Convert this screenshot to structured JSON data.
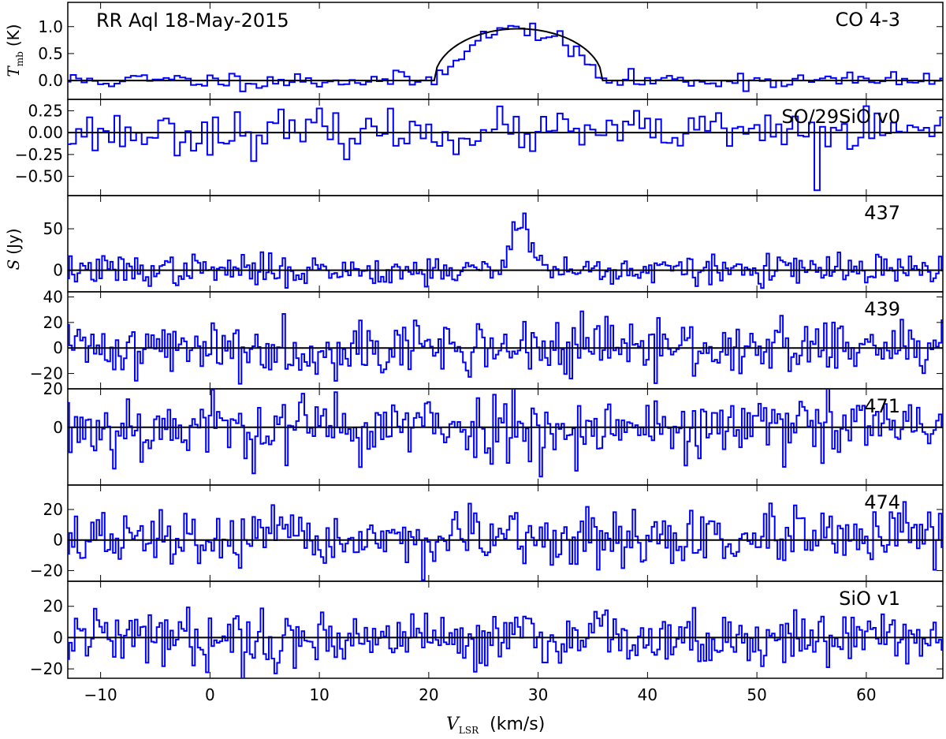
{
  "chart_data": {
    "type": "line",
    "title": "RR Aql  18-May-2015",
    "xlabel": {
      "symbol": "V",
      "subscript": "LSR",
      "unit": "(km/s)"
    },
    "xlim": [
      -13,
      67
    ],
    "xticks": [
      -10,
      0,
      10,
      20,
      30,
      40,
      50,
      60
    ],
    "xtick_labels": [
      "−10",
      "0",
      "10",
      "20",
      "30",
      "40",
      "50",
      "60"
    ],
    "ylabels": {
      "tmb": {
        "symbol": "T",
        "subscript": "mb",
        "unit": "(K)"
      },
      "s": {
        "symbol": "S",
        "unit": "(Jy)"
      }
    },
    "colors": {
      "spectrum": "#0000ff",
      "model": "#000000",
      "axes": "#000000"
    },
    "panels": [
      {
        "label": "CO 4-3",
        "ylim": [
          -0.35,
          1.45
        ],
        "yticks": [
          0.0,
          0.5,
          1.0
        ],
        "ytick_labels": [
          "0.0",
          "0.5",
          "1.0"
        ],
        "channel_width": 0.5,
        "noise": 0.08,
        "seed": 11,
        "line": {
          "center": 28.2,
          "halfwidth": 7.7,
          "peak": 0.96
        },
        "model": "parabola"
      },
      {
        "label": "SO/29SiO v0",
        "ylim": [
          -0.72,
          0.38
        ],
        "yticks": [
          -0.5,
          -0.25,
          0.0,
          0.25
        ],
        "ytick_labels": [
          "−0.50",
          "−0.25",
          "0.00",
          "0.25"
        ],
        "channel_width": 0.5,
        "noise": 0.12,
        "seed": 23,
        "features": [
          {
            "x": 55.5,
            "value": -0.66
          }
        ]
      },
      {
        "label": "437",
        "ylim": [
          -26,
          90
        ],
        "yticks": [
          0,
          50
        ],
        "ytick_labels": [
          "0",
          "50"
        ],
        "channel_width": 0.25,
        "noise": 9,
        "seed": 37,
        "line": {
          "center": 28.5,
          "halfwidth": 0.8,
          "peak": 68,
          "shape": "gauss"
        }
      },
      {
        "label": "439",
        "ylim": [
          -32,
          44
        ],
        "yticks": [
          -20,
          0,
          20,
          40
        ],
        "ytick_labels": [
          "−20",
          "0",
          "20",
          "40"
        ],
        "channel_width": 0.25,
        "noise": 11,
        "seed": 41
      },
      {
        "label": "471",
        "ylim": [
          -30,
          20
        ],
        "yticks": [
          0,
          20
        ],
        "ytick_labels": [
          "0",
          "20"
        ],
        "channel_width": 0.25,
        "noise": 9,
        "seed": 53
      },
      {
        "label": "474",
        "ylim": [
          -27,
          36
        ],
        "yticks": [
          -20,
          0,
          20
        ],
        "ytick_labels": [
          "−20",
          "0",
          "20"
        ],
        "channel_width": 0.25,
        "noise": 9,
        "seed": 67
      },
      {
        "label": "SiO v1",
        "ylim": [
          -26,
          36
        ],
        "yticks": [
          -20,
          0,
          20
        ],
        "ytick_labels": [
          "−20",
          "0",
          "20"
        ],
        "channel_width": 0.25,
        "noise": 9,
        "seed": 79
      }
    ]
  }
}
